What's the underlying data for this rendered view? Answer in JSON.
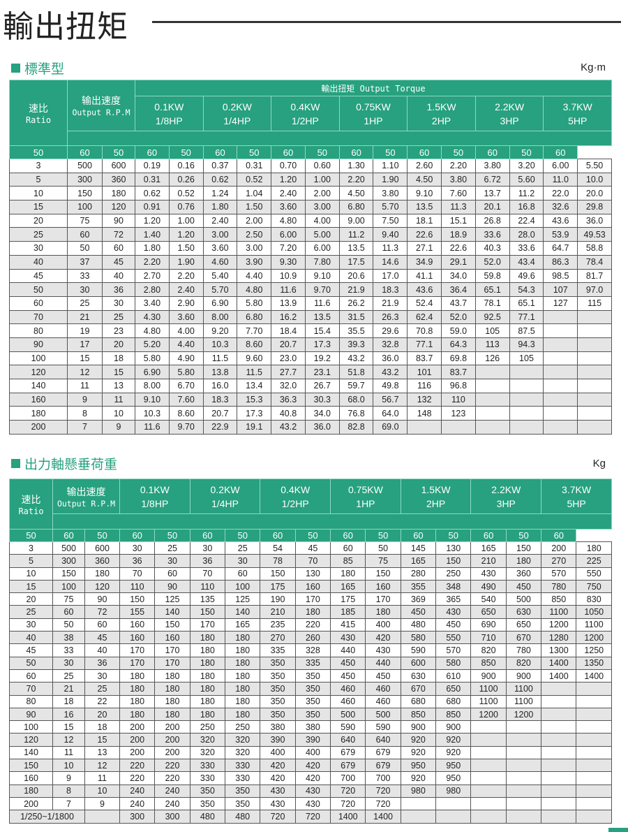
{
  "title": "輸出扭矩",
  "accent_color": "#27a17f",
  "section1": {
    "label": "標準型",
    "unit": "Kg·m",
    "header": {
      "ratio_zh": "速比",
      "ratio_en": "Ratio",
      "rpm_zh": "输出速度",
      "rpm_en": "Output R.P.M",
      "group": "輸出扭矩 Output Torque",
      "powers": [
        [
          "0.1KW",
          "1/8HP"
        ],
        [
          "0.2KW",
          "1/4HP"
        ],
        [
          "0.4KW",
          "1/2HP"
        ],
        [
          "0.75KW",
          "1HP"
        ],
        [
          "1.5KW",
          "2HP"
        ],
        [
          "2.2KW",
          "3HP"
        ],
        [
          "3.7KW",
          "5HP"
        ]
      ],
      "hz": [
        "50",
        "60"
      ]
    },
    "rows": [
      [
        "3",
        "500",
        "600",
        "0.19",
        "0.16",
        "0.37",
        "0.31",
        "0.70",
        "0.60",
        "1.30",
        "1.10",
        "2.60",
        "2.20",
        "3.80",
        "3.20",
        "6.00",
        "5.50"
      ],
      [
        "5",
        "300",
        "360",
        "0.31",
        "0.26",
        "0.62",
        "0.52",
        "1.20",
        "1.00",
        "2.20",
        "1.90",
        "4.50",
        "3.80",
        "6.72",
        "5.60",
        "11.0",
        "10.0"
      ],
      [
        "10",
        "150",
        "180",
        "0.62",
        "0.52",
        "1.24",
        "1.04",
        "2.40",
        "2.00",
        "4.50",
        "3.80",
        "9.10",
        "7.60",
        "13.7",
        "11.2",
        "22.0",
        "20.0"
      ],
      [
        "15",
        "100",
        "120",
        "0.91",
        "0.76",
        "1.80",
        "1.50",
        "3.60",
        "3.00",
        "6.80",
        "5.70",
        "13.5",
        "11.3",
        "20.1",
        "16.8",
        "32.6",
        "29.8"
      ],
      [
        "20",
        "75",
        "90",
        "1.20",
        "1.00",
        "2.40",
        "2.00",
        "4.80",
        "4.00",
        "9.00",
        "7.50",
        "18.1",
        "15.1",
        "26.8",
        "22.4",
        "43.6",
        "36.0"
      ],
      [
        "25",
        "60",
        "72",
        "1.40",
        "1.20",
        "3.00",
        "2.50",
        "6.00",
        "5.00",
        "11.2",
        "9.40",
        "22.6",
        "18.9",
        "33.6",
        "28.0",
        "53.9",
        "49.53"
      ],
      [
        "30",
        "50",
        "60",
        "1.80",
        "1.50",
        "3.60",
        "3.00",
        "7.20",
        "6.00",
        "13.5",
        "11.3",
        "27.1",
        "22.6",
        "40.3",
        "33.6",
        "64.7",
        "58.8"
      ],
      [
        "40",
        "37",
        "45",
        "2.20",
        "1.90",
        "4.60",
        "3.90",
        "9.30",
        "7.80",
        "17.5",
        "14.6",
        "34.9",
        "29.1",
        "52.0",
        "43.4",
        "86.3",
        "78.4"
      ],
      [
        "45",
        "33",
        "40",
        "2.70",
        "2.20",
        "5.40",
        "4.40",
        "10.9",
        "9.10",
        "20.6",
        "17.0",
        "41.1",
        "34.0",
        "59.8",
        "49.6",
        "98.5",
        "81.7"
      ],
      [
        "50",
        "30",
        "36",
        "2.80",
        "2.40",
        "5.70",
        "4.80",
        "11.6",
        "9.70",
        "21.9",
        "18.3",
        "43.6",
        "36.4",
        "65.1",
        "54.3",
        "107",
        "97.0"
      ],
      [
        "60",
        "25",
        "30",
        "3.40",
        "2.90",
        "6.90",
        "5.80",
        "13.9",
        "11.6",
        "26.2",
        "21.9",
        "52.4",
        "43.7",
        "78.1",
        "65.1",
        "127",
        "115"
      ],
      [
        "70",
        "21",
        "25",
        "4.30",
        "3.60",
        "8.00",
        "6.80",
        "16.2",
        "13.5",
        "31.5",
        "26.3",
        "62.4",
        "52.0",
        "92.5",
        "77.1",
        "",
        ""
      ],
      [
        "80",
        "19",
        "23",
        "4.80",
        "4.00",
        "9.20",
        "7.70",
        "18.4",
        "15.4",
        "35.5",
        "29.6",
        "70.8",
        "59.0",
        "105",
        "87.5",
        "",
        ""
      ],
      [
        "90",
        "17",
        "20",
        "5.20",
        "4.40",
        "10.3",
        "8.60",
        "20.7",
        "17.3",
        "39.3",
        "32.8",
        "77.1",
        "64.3",
        "113",
        "94.3",
        "",
        ""
      ],
      [
        "100",
        "15",
        "18",
        "5.80",
        "4.90",
        "11.5",
        "9.60",
        "23.0",
        "19.2",
        "43.2",
        "36.0",
        "83.7",
        "69.8",
        "126",
        "105",
        "",
        ""
      ],
      [
        "120",
        "12",
        "15",
        "6.90",
        "5.80",
        "13.8",
        "11.5",
        "27.7",
        "23.1",
        "51.8",
        "43.2",
        "101",
        "83.7",
        "",
        "",
        "",
        ""
      ],
      [
        "140",
        "11",
        "13",
        "8.00",
        "6.70",
        "16.0",
        "13.4",
        "32.0",
        "26.7",
        "59.7",
        "49.8",
        "116",
        "96.8",
        "",
        "",
        "",
        ""
      ],
      [
        "160",
        "9",
        "11",
        "9.10",
        "7.60",
        "18.3",
        "15.3",
        "36.3",
        "30.3",
        "68.0",
        "56.7",
        "132",
        "110",
        "",
        "",
        "",
        ""
      ],
      [
        "180",
        "8",
        "10",
        "10.3",
        "8.60",
        "20.7",
        "17.3",
        "40.8",
        "34.0",
        "76.8",
        "64.0",
        "148",
        "123",
        "",
        "",
        "",
        ""
      ],
      [
        "200",
        "7",
        "9",
        "11.6",
        "9.70",
        "22.9",
        "19.1",
        "43.2",
        "36.0",
        "82.8",
        "69.0",
        "",
        "",
        "",
        "",
        "",
        ""
      ]
    ]
  },
  "section2": {
    "label": "出力軸懸垂荷重",
    "unit": "Kg",
    "header": {
      "ratio_zh": "速比",
      "ratio_en": "Ratio",
      "rpm_zh": "输出速度",
      "rpm_en": "Output R.P.M",
      "powers": [
        [
          "0.1KW",
          "1/8HP"
        ],
        [
          "0.2KW",
          "1/4HP"
        ],
        [
          "0.4KW",
          "1/2HP"
        ],
        [
          "0.75KW",
          "1HP"
        ],
        [
          "1.5KW",
          "2HP"
        ],
        [
          "2.2KW",
          "3HP"
        ],
        [
          "3.7KW",
          "5HP"
        ]
      ],
      "hz": [
        "50",
        "60"
      ]
    },
    "rows": [
      [
        "3",
        "500",
        "600",
        "30",
        "25",
        "30",
        "25",
        "54",
        "45",
        "60",
        "50",
        "145",
        "130",
        "165",
        "150",
        "200",
        "180"
      ],
      [
        "5",
        "300",
        "360",
        "36",
        "30",
        "36",
        "30",
        "78",
        "70",
        "85",
        "75",
        "165",
        "150",
        "210",
        "180",
        "270",
        "225"
      ],
      [
        "10",
        "150",
        "180",
        "70",
        "60",
        "70",
        "60",
        "150",
        "130",
        "180",
        "150",
        "280",
        "250",
        "430",
        "360",
        "570",
        "550"
      ],
      [
        "15",
        "100",
        "120",
        "110",
        "90",
        "110",
        "100",
        "175",
        "160",
        "165",
        "160",
        "355",
        "348",
        "490",
        "450",
        "780",
        "750"
      ],
      [
        "20",
        "75",
        "90",
        "150",
        "125",
        "135",
        "125",
        "190",
        "170",
        "175",
        "170",
        "369",
        "365",
        "540",
        "500",
        "850",
        "830"
      ],
      [
        "25",
        "60",
        "72",
        "155",
        "140",
        "150",
        "140",
        "210",
        "180",
        "185",
        "180",
        "450",
        "430",
        "650",
        "630",
        "1100",
        "1050"
      ],
      [
        "30",
        "50",
        "60",
        "160",
        "150",
        "170",
        "165",
        "235",
        "220",
        "415",
        "400",
        "480",
        "450",
        "690",
        "650",
        "1200",
        "1100"
      ],
      [
        "40",
        "38",
        "45",
        "160",
        "160",
        "180",
        "180",
        "270",
        "260",
        "430",
        "420",
        "580",
        "550",
        "710",
        "670",
        "1280",
        "1200"
      ],
      [
        "45",
        "33",
        "40",
        "170",
        "170",
        "180",
        "180",
        "335",
        "328",
        "440",
        "430",
        "590",
        "570",
        "820",
        "780",
        "1300",
        "1250"
      ],
      [
        "50",
        "30",
        "36",
        "170",
        "170",
        "180",
        "180",
        "350",
        "335",
        "450",
        "440",
        "600",
        "580",
        "850",
        "820",
        "1400",
        "1350"
      ],
      [
        "60",
        "25",
        "30",
        "180",
        "180",
        "180",
        "180",
        "350",
        "350",
        "450",
        "450",
        "630",
        "610",
        "900",
        "900",
        "1400",
        "1400"
      ],
      [
        "70",
        "21",
        "25",
        "180",
        "180",
        "180",
        "180",
        "350",
        "350",
        "460",
        "460",
        "670",
        "650",
        "1100",
        "1100",
        "",
        ""
      ],
      [
        "80",
        "18",
        "22",
        "180",
        "180",
        "180",
        "180",
        "350",
        "350",
        "460",
        "460",
        "680",
        "680",
        "1100",
        "1100",
        "",
        ""
      ],
      [
        "90",
        "16",
        "20",
        "180",
        "180",
        "180",
        "180",
        "350",
        "350",
        "500",
        "500",
        "850",
        "850",
        "1200",
        "1200",
        "",
        ""
      ],
      [
        "100",
        "15",
        "18",
        "200",
        "200",
        "250",
        "250",
        "380",
        "380",
        "590",
        "590",
        "900",
        "900",
        "",
        "",
        "",
        ""
      ],
      [
        "120",
        "12",
        "15",
        "200",
        "200",
        "320",
        "320",
        "390",
        "390",
        "640",
        "640",
        "920",
        "920",
        "",
        "",
        "",
        ""
      ],
      [
        "140",
        "11",
        "13",
        "200",
        "200",
        "320",
        "320",
        "400",
        "400",
        "679",
        "679",
        "920",
        "920",
        "",
        "",
        "",
        ""
      ],
      [
        "150",
        "10",
        "12",
        "220",
        "220",
        "330",
        "330",
        "420",
        "420",
        "679",
        "679",
        "950",
        "950",
        "",
        "",
        "",
        ""
      ],
      [
        "160",
        "9",
        "11",
        "220",
        "220",
        "330",
        "330",
        "420",
        "420",
        "700",
        "700",
        "920",
        "950",
        "",
        "",
        "",
        ""
      ],
      [
        "180",
        "8",
        "10",
        "240",
        "240",
        "350",
        "350",
        "430",
        "430",
        "720",
        "720",
        "980",
        "980",
        "",
        "",
        "",
        ""
      ],
      [
        "200",
        "7",
        "9",
        "240",
        "240",
        "350",
        "350",
        "430",
        "430",
        "720",
        "720",
        "",
        "",
        "",
        "",
        "",
        ""
      ]
    ],
    "footer_row": {
      "label": "1/250~1/1800",
      "values": [
        "",
        "300",
        "300",
        "480",
        "480",
        "720",
        "720",
        "1400",
        "1400",
        "",
        "",
        "",
        "",
        "",
        ""
      ]
    }
  }
}
